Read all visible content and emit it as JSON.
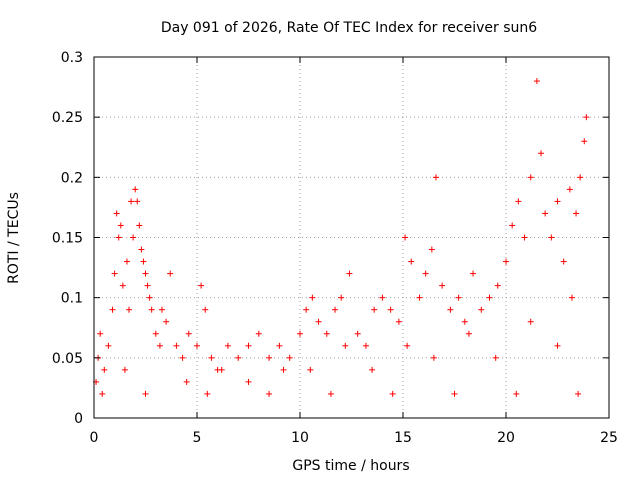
{
  "chart_data": {
    "type": "scatter",
    "title": "Day 091 of 2026, Rate Of TEC Index for receiver sun6",
    "xlabel": "GPS time / hours",
    "ylabel": "ROTI / TECUs",
    "xlim": [
      0,
      25
    ],
    "ylim": [
      0,
      0.3
    ],
    "xticks": [
      0,
      5,
      10,
      15,
      20,
      25
    ],
    "xtick_labels": [
      "0",
      "5",
      "10",
      "15",
      "20",
      "25"
    ],
    "yticks": [
      0,
      0.05,
      0.1,
      0.15,
      0.2,
      0.25,
      0.3
    ],
    "ytick_labels": [
      "0",
      "0.05",
      "0.1",
      "0.15",
      "0.2",
      "0.25",
      "0.3"
    ],
    "grid": true,
    "marker": "+",
    "color": "#ff0000",
    "points": [
      [
        0.1,
        0.03
      ],
      [
        0.2,
        0.05
      ],
      [
        0.3,
        0.07
      ],
      [
        0.5,
        0.04
      ],
      [
        0.7,
        0.06
      ],
      [
        0.9,
        0.09
      ],
      [
        1.0,
        0.12
      ],
      [
        1.1,
        0.17
      ],
      [
        1.2,
        0.15
      ],
      [
        1.3,
        0.16
      ],
      [
        1.4,
        0.11
      ],
      [
        1.6,
        0.13
      ],
      [
        1.7,
        0.09
      ],
      [
        1.8,
        0.18
      ],
      [
        1.9,
        0.15
      ],
      [
        2.0,
        0.19
      ],
      [
        2.1,
        0.18
      ],
      [
        2.2,
        0.16
      ],
      [
        2.3,
        0.14
      ],
      [
        2.4,
        0.13
      ],
      [
        2.5,
        0.12
      ],
      [
        2.6,
        0.11
      ],
      [
        2.7,
        0.1
      ],
      [
        2.8,
        0.09
      ],
      [
        3.0,
        0.07
      ],
      [
        3.2,
        0.06
      ],
      [
        3.5,
        0.08
      ],
      [
        3.7,
        0.12
      ],
      [
        4.0,
        0.06
      ],
      [
        4.3,
        0.05
      ],
      [
        4.6,
        0.07
      ],
      [
        5.0,
        0.06
      ],
      [
        5.2,
        0.11
      ],
      [
        5.4,
        0.09
      ],
      [
        5.7,
        0.05
      ],
      [
        6.0,
        0.04
      ],
      [
        6.5,
        0.06
      ],
      [
        7.0,
        0.05
      ],
      [
        7.5,
        0.06
      ],
      [
        8.0,
        0.07
      ],
      [
        8.5,
        0.05
      ],
      [
        9.0,
        0.06
      ],
      [
        9.5,
        0.05
      ],
      [
        10.0,
        0.07
      ],
      [
        10.3,
        0.09
      ],
      [
        10.6,
        0.1
      ],
      [
        10.9,
        0.08
      ],
      [
        11.3,
        0.07
      ],
      [
        11.7,
        0.09
      ],
      [
        12.0,
        0.1
      ],
      [
        12.4,
        0.12
      ],
      [
        12.8,
        0.07
      ],
      [
        13.2,
        0.06
      ],
      [
        13.6,
        0.09
      ],
      [
        14.0,
        0.1
      ],
      [
        14.4,
        0.09
      ],
      [
        14.8,
        0.08
      ],
      [
        15.1,
        0.15
      ],
      [
        15.4,
        0.13
      ],
      [
        15.8,
        0.1
      ],
      [
        16.1,
        0.12
      ],
      [
        16.4,
        0.14
      ],
      [
        16.6,
        0.2
      ],
      [
        16.9,
        0.11
      ],
      [
        17.3,
        0.09
      ],
      [
        17.7,
        0.1
      ],
      [
        18.0,
        0.08
      ],
      [
        18.4,
        0.12
      ],
      [
        18.8,
        0.09
      ],
      [
        19.2,
        0.1
      ],
      [
        19.6,
        0.11
      ],
      [
        20.0,
        0.13
      ],
      [
        20.3,
        0.16
      ],
      [
        20.6,
        0.18
      ],
      [
        20.9,
        0.15
      ],
      [
        21.2,
        0.2
      ],
      [
        21.5,
        0.28
      ],
      [
        21.7,
        0.22
      ],
      [
        21.9,
        0.17
      ],
      [
        22.2,
        0.15
      ],
      [
        22.5,
        0.18
      ],
      [
        22.8,
        0.13
      ],
      [
        23.1,
        0.19
      ],
      [
        23.4,
        0.17
      ],
      [
        23.6,
        0.2
      ],
      [
        23.8,
        0.23
      ],
      [
        23.9,
        0.25
      ],
      [
        0.4,
        0.02
      ],
      [
        2.5,
        0.02
      ],
      [
        5.5,
        0.02
      ],
      [
        8.5,
        0.02
      ],
      [
        11.5,
        0.02
      ],
      [
        14.5,
        0.02
      ],
      [
        17.5,
        0.02
      ],
      [
        20.5,
        0.02
      ],
      [
        23.5,
        0.02
      ],
      [
        1.5,
        0.04
      ],
      [
        4.5,
        0.03
      ],
      [
        7.5,
        0.03
      ],
      [
        10.5,
        0.04
      ],
      [
        13.5,
        0.04
      ],
      [
        16.5,
        0.05
      ],
      [
        19.5,
        0.05
      ],
      [
        22.5,
        0.06
      ],
      [
        3.3,
        0.09
      ],
      [
        6.2,
        0.04
      ],
      [
        9.2,
        0.04
      ],
      [
        12.2,
        0.06
      ],
      [
        15.2,
        0.06
      ],
      [
        18.2,
        0.07
      ],
      [
        21.2,
        0.08
      ],
      [
        23.2,
        0.1
      ]
    ]
  }
}
